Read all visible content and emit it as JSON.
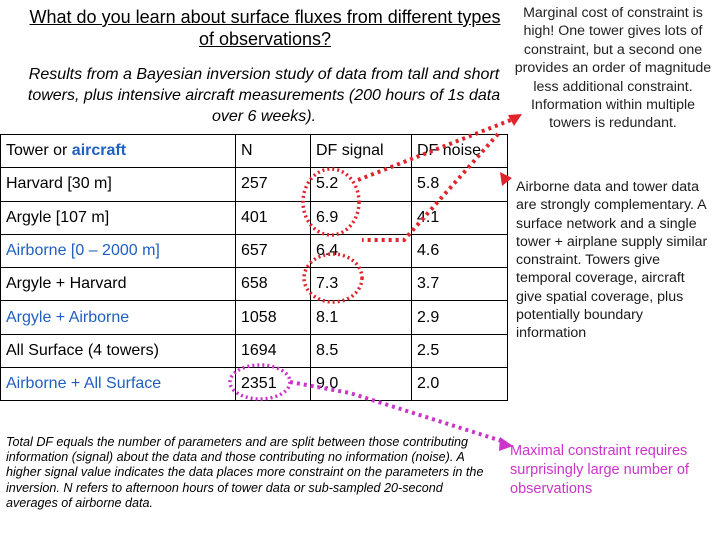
{
  "title": "What do you learn about surface fluxes from different types of observations?",
  "subtitle": "Results from a Bayesian inversion study of data from tall and short towers, plus intensive aircraft measurements (200 hours of 1s data over 6 weeks).",
  "table": {
    "headers": [
      {
        "pre": "Tower or ",
        "highlight": "aircraft"
      },
      "N",
      "DF signal",
      "DF noise"
    ],
    "rows": [
      {
        "label": "Harvard [30 m]",
        "n": "257",
        "signal": "5.2",
        "noise": "5.8",
        "style": "plain"
      },
      {
        "label": "Argyle [107 m]",
        "n": "401",
        "signal": "6.9",
        "noise": "4.1",
        "style": "plain"
      },
      {
        "label": "Airborne [0 – 2000 m]",
        "n": "657",
        "signal": "6.4",
        "noise": "4.6",
        "style": "blue"
      },
      {
        "label": "Argyle + Harvard",
        "n": "658",
        "signal": "7.3",
        "noise": "3.7",
        "style": "plain"
      },
      {
        "label": "Argyle + Airborne",
        "n": "1058",
        "signal": "8.1",
        "noise": "2.9",
        "style": "blue"
      },
      {
        "label": "All Surface (4 towers)",
        "n": "1694",
        "signal": "8.5",
        "noise": "2.5",
        "style": "plain"
      },
      {
        "label": "Airborne + All Surface",
        "n": "2351",
        "signal": "9.0",
        "noise": "2.0",
        "style": "blue"
      }
    ]
  },
  "footnote": "Total DF equals the number of parameters and are split between those contributing information (signal) about the data and those contributing no information (noise). A higher signal value indicates the data places more constraint on the parameters in the inversion. N refers to afternoon hours of tower data or sub-sampled 20-second averages of airborne data.",
  "notes": {
    "marginal": "Marginal cost of constraint is high! One tower gives lots of constraint, but a second one provides an order of magnitude less additional constraint. Information within multiple towers is redundant.",
    "airborne": "Airborne data and tower data are strongly complementary. A surface network and a single tower + airplane supply similar constraint. Towers give temporal coverage, aircraft give spatial coverage, plus potentially boundary information",
    "maximal": "Maximal constraint requires surprisingly large number of observations"
  },
  "colors": {
    "annotation_red": "#e0242b",
    "annotation_magenta": "#cc33cc",
    "aircraft_blue": "#1f5fbf"
  }
}
